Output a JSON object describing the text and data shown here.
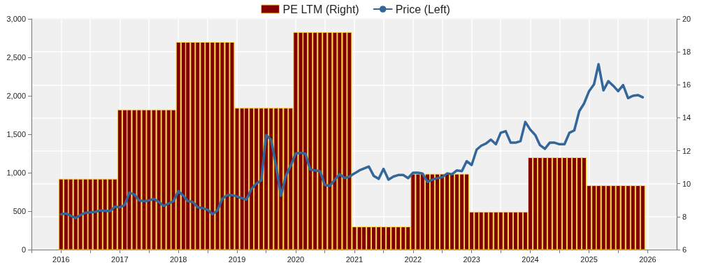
{
  "chart_data": {
    "type": "bar",
    "legend": "top",
    "grid": true,
    "x": [
      "2016-01",
      "2016-02",
      "2016-03",
      "2016-04",
      "2016-05",
      "2016-06",
      "2016-07",
      "2016-08",
      "2016-09",
      "2016-10",
      "2016-11",
      "2016-12",
      "2017-01",
      "2017-02",
      "2017-03",
      "2017-04",
      "2017-05",
      "2017-06",
      "2017-07",
      "2017-08",
      "2017-09",
      "2017-10",
      "2017-11",
      "2017-12",
      "2018-01",
      "2018-02",
      "2018-03",
      "2018-04",
      "2018-05",
      "2018-06",
      "2018-07",
      "2018-08",
      "2018-09",
      "2018-10",
      "2018-11",
      "2018-12",
      "2019-01",
      "2019-02",
      "2019-03",
      "2019-04",
      "2019-05",
      "2019-06",
      "2019-07",
      "2019-08",
      "2019-09",
      "2019-10",
      "2019-11",
      "2019-12",
      "2020-01",
      "2020-02",
      "2020-03",
      "2020-04",
      "2020-05",
      "2020-06",
      "2020-07",
      "2020-08",
      "2020-09",
      "2020-10",
      "2020-11",
      "2020-12",
      "2021-01",
      "2021-02",
      "2021-03",
      "2021-04",
      "2021-05",
      "2021-06",
      "2021-07",
      "2021-08",
      "2021-09",
      "2021-10",
      "2021-11",
      "2021-12",
      "2022-01",
      "2022-02",
      "2022-03",
      "2022-04",
      "2022-05",
      "2022-06",
      "2022-07",
      "2022-08",
      "2022-09",
      "2022-10",
      "2022-11",
      "2022-12",
      "2023-01",
      "2023-02",
      "2023-03",
      "2023-04",
      "2023-05",
      "2023-06",
      "2023-07",
      "2023-08",
      "2023-09",
      "2023-10",
      "2023-11",
      "2023-12",
      "2024-01",
      "2024-02",
      "2024-03",
      "2024-04",
      "2024-05",
      "2024-06",
      "2024-07",
      "2024-08",
      "2024-09",
      "2024-10",
      "2024-11",
      "2024-12",
      "2025-01",
      "2025-02",
      "2025-03",
      "2025-04",
      "2025-05",
      "2025-06",
      "2025-07",
      "2025-08",
      "2025-09",
      "2025-10",
      "2025-11",
      "2025-12"
    ],
    "series": [
      {
        "name": "PE LTM (Right)",
        "axis": "y2",
        "color": "#800000",
        "values": [
          10.3,
          10.3,
          10.3,
          10.3,
          10.3,
          10.3,
          10.3,
          10.3,
          10.3,
          10.3,
          10.3,
          10.3,
          14.5,
          14.5,
          14.5,
          14.5,
          14.5,
          14.5,
          14.5,
          14.5,
          14.5,
          14.5,
          14.5,
          14.5,
          18.6,
          18.6,
          18.6,
          18.6,
          18.6,
          18.6,
          18.6,
          18.6,
          18.6,
          18.6,
          18.6,
          18.6,
          14.6,
          14.6,
          14.6,
          14.6,
          14.6,
          14.6,
          14.6,
          14.6,
          14.6,
          14.6,
          14.6,
          14.6,
          19.2,
          19.2,
          19.2,
          19.2,
          19.2,
          19.2,
          19.2,
          19.2,
          19.2,
          19.2,
          19.2,
          19.2,
          7.4,
          7.4,
          7.4,
          7.4,
          7.4,
          7.4,
          7.4,
          7.4,
          7.4,
          7.4,
          7.4,
          7.4,
          10.6,
          10.6,
          10.6,
          10.6,
          10.6,
          10.6,
          10.6,
          10.6,
          10.6,
          10.6,
          10.6,
          10.6,
          8.3,
          8.3,
          8.3,
          8.3,
          8.3,
          8.3,
          8.3,
          8.3,
          8.3,
          8.3,
          8.3,
          8.3,
          11.6,
          11.6,
          11.6,
          11.6,
          11.6,
          11.6,
          11.6,
          11.6,
          11.6,
          11.6,
          11.6,
          11.6,
          9.9,
          9.9,
          9.9,
          9.9,
          9.9,
          9.9,
          9.9,
          9.9,
          9.9,
          9.9,
          9.9,
          9.9
        ]
      },
      {
        "name": "Price (Left)",
        "type": "line",
        "color": "#336699",
        "x": [
          "2016-01",
          "2016-02",
          "2016-04",
          "2016-05",
          "2016-06",
          "2016-08",
          "2016-09",
          "2016-11",
          "2016-12",
          "2017-01",
          "2017-02",
          "2017-03",
          "2017-04",
          "2017-05",
          "2017-06",
          "2017-07",
          "2017-08",
          "2017-09",
          "2017-10",
          "2017-11",
          "2017-12",
          "2018-01",
          "2018-02",
          "2018-03",
          "2018-04",
          "2018-05",
          "2018-06",
          "2018-07",
          "2018-08",
          "2018-09",
          "2018-10",
          "2018-11",
          "2018-12",
          "2019-01",
          "2019-03",
          "2019-04",
          "2019-05",
          "2019-06",
          "2019-07",
          "2019-08",
          "2019-09",
          "2019-10",
          "2019-11",
          "2019-12",
          "2020-01",
          "2020-02",
          "2020-03",
          "2020-04",
          "2020-05",
          "2020-06",
          "2020-07",
          "2020-08",
          "2020-09",
          "2020-10",
          "2020-11",
          "2020-12",
          "2021-01",
          "2021-02",
          "2021-04",
          "2021-05",
          "2021-06",
          "2021-07",
          "2021-08",
          "2021-09",
          "2021-10",
          "2021-11",
          "2021-12",
          "2022-01",
          "2022-02",
          "2022-03",
          "2022-04",
          "2022-05",
          "2022-06",
          "2022-07",
          "2022-08",
          "2022-09",
          "2022-10",
          "2022-11",
          "2022-12",
          "2023-01",
          "2023-02",
          "2023-03",
          "2023-04",
          "2023-05",
          "2023-06",
          "2023-07",
          "2023-08",
          "2023-09",
          "2023-10",
          "2023-11",
          "2023-12",
          "2024-01",
          "2024-02",
          "2024-03",
          "2024-04",
          "2024-05",
          "2024-06",
          "2024-07",
          "2024-08",
          "2024-09",
          "2024-10",
          "2024-11",
          "2024-12",
          "2025-01",
          "2025-02",
          "2025-03",
          "2025-04",
          "2025-05",
          "2025-06",
          "2025-07",
          "2025-08",
          "2025-09",
          "2025-10",
          "2025-11",
          "2025-12"
        ],
        "values": [
          460,
          470,
          410,
          450,
          480,
          490,
          510,
          500,
          560,
          550,
          580,
          740,
          720,
          640,
          630,
          640,
          660,
          620,
          570,
          600,
          630,
          760,
          700,
          630,
          620,
          550,
          540,
          520,
          460,
          510,
          660,
          710,
          710,
          690,
          650,
          790,
          860,
          900,
          1490,
          1430,
          1090,
          700,
          960,
          1090,
          1250,
          1260,
          1250,
          1040,
          1030,
          1020,
          840,
          830,
          910,
          980,
          930,
          950,
          990,
          1030,
          1080,
          960,
          920,
          1050,
          910,
          950,
          970,
          970,
          930,
          1000,
          1000,
          990,
          880,
          910,
          930,
          940,
          990,
          980,
          1030,
          1020,
          1150,
          1100,
          1300,
          1350,
          1380,
          1430,
          1370,
          1520,
          1540,
          1390,
          1390,
          1410,
          1660,
          1560,
          1490,
          1360,
          1310,
          1390,
          1390,
          1370,
          1370,
          1520,
          1550,
          1800,
          1900,
          2060,
          2150,
          2410,
          2070,
          2190,
          2130,
          2060,
          2140,
          1970,
          2000,
          2010,
          1980
        ]
      }
    ],
    "xlim": [
      "2015-07",
      "2026-07"
    ],
    "xticks": [
      {
        "value": "2015-07",
        "label": null
      },
      {
        "value": "2016-01",
        "label": "2016"
      },
      {
        "value": "2016-07",
        "label": null
      },
      {
        "value": "2017-01",
        "label": "2017"
      },
      {
        "value": "2017-07",
        "label": null
      },
      {
        "value": "2018-01",
        "label": "2018"
      },
      {
        "value": "2018-07",
        "label": null
      },
      {
        "value": "2019-01",
        "label": "2019"
      },
      {
        "value": "2019-07",
        "label": null
      },
      {
        "value": "2020-01",
        "label": "2020"
      },
      {
        "value": "2020-07",
        "label": null
      },
      {
        "value": "2021-01",
        "label": "2021"
      },
      {
        "value": "2021-07",
        "label": null
      },
      {
        "value": "2022-01",
        "label": "2022"
      },
      {
        "value": "2022-07",
        "label": null
      },
      {
        "value": "2023-01",
        "label": "2023"
      },
      {
        "value": "2023-07",
        "label": null
      },
      {
        "value": "2024-01",
        "label": "2024"
      },
      {
        "value": "2024-07",
        "label": null
      },
      {
        "value": "2025-01",
        "label": "2025"
      },
      {
        "value": "2025-07",
        "label": null
      },
      {
        "value": "2026-01",
        "label": "2026"
      }
    ],
    "ylim": [
      0,
      3000
    ],
    "yticks": [
      0,
      500,
      {
        "value": 1000,
        "label": "1,000"
      },
      {
        "value": 1500,
        "label": "1,500"
      },
      {
        "value": 2000,
        "label": "2,000"
      },
      {
        "value": 2500,
        "label": "2,500"
      },
      {
        "value": 3000,
        "label": "3,000"
      }
    ],
    "y2lim": [
      6,
      20
    ],
    "y2ticks": [
      6,
      8,
      10,
      12,
      14,
      16,
      18,
      20
    ]
  }
}
